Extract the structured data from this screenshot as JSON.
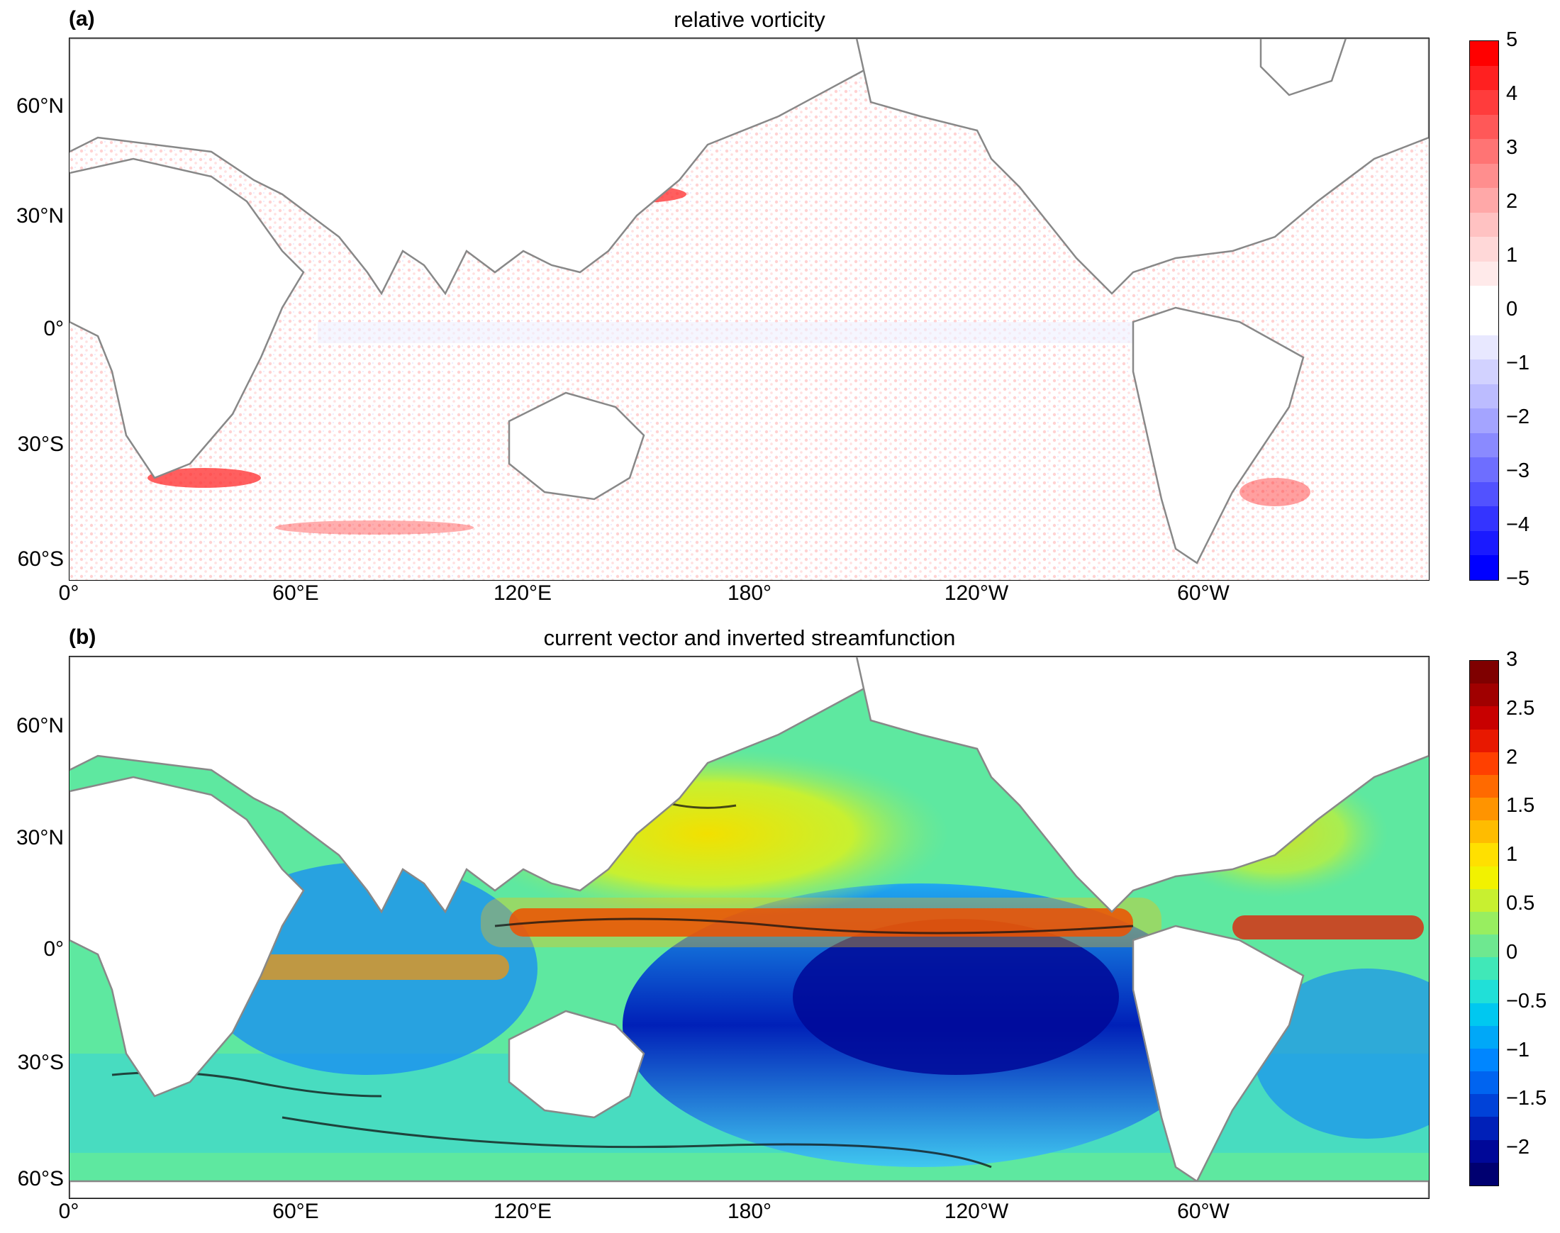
{
  "panel_a": {
    "letter": "(a)",
    "title": "relative vorticity",
    "lat_ticks": [
      "60°N",
      "30°N",
      "0°",
      "30°S",
      "60°S"
    ],
    "lon_ticks": [
      "0°",
      "60°E",
      "120°E",
      "180°",
      "120°W",
      "60°W"
    ],
    "colorbar_ticks": [
      "5",
      "4",
      "3",
      "2",
      "1",
      "0",
      "−1",
      "−2",
      "−3",
      "−4",
      "−5"
    ],
    "colorbar_colors": [
      "#ff0000",
      "#ff2020",
      "#ff3c3c",
      "#ff5858",
      "#ff7474",
      "#ff8e8e",
      "#ffa8a8",
      "#ffc2c2",
      "#ffd8d8",
      "#ffeaea",
      "#ffffff",
      "#ffffff",
      "#e8e8ff",
      "#d2d2ff",
      "#bcbcff",
      "#a4a4ff",
      "#8a8aff",
      "#6e6eff",
      "#5252ff",
      "#3434ff",
      "#1a1aff",
      "#0000ff"
    ]
  },
  "panel_b": {
    "letter": "(b)",
    "title": "current vector and inverted streamfunction",
    "lat_ticks": [
      "60°N",
      "30°N",
      "0°",
      "30°S",
      "60°S"
    ],
    "lon_ticks": [
      "0°",
      "60°E",
      "120°E",
      "180°",
      "120°W",
      "60°W"
    ],
    "colorbar_ticks": [
      "3",
      "2.5",
      "2",
      "1.5",
      "1",
      "0.5",
      "0",
      "−0.5",
      "−1",
      "−1.5",
      "−2"
    ],
    "colorbar_colors": [
      "#7f0000",
      "#a00000",
      "#c80000",
      "#e81800",
      "#ff4000",
      "#ff6a00",
      "#ff9400",
      "#ffbc00",
      "#ffe000",
      "#f2f200",
      "#c8f030",
      "#98ee60",
      "#6ee890",
      "#40e8b8",
      "#20e0d8",
      "#00c8f0",
      "#00a8f8",
      "#0086ff",
      "#0064f0",
      "#0042d8",
      "#0020b8",
      "#000898",
      "#000070"
    ]
  }
}
